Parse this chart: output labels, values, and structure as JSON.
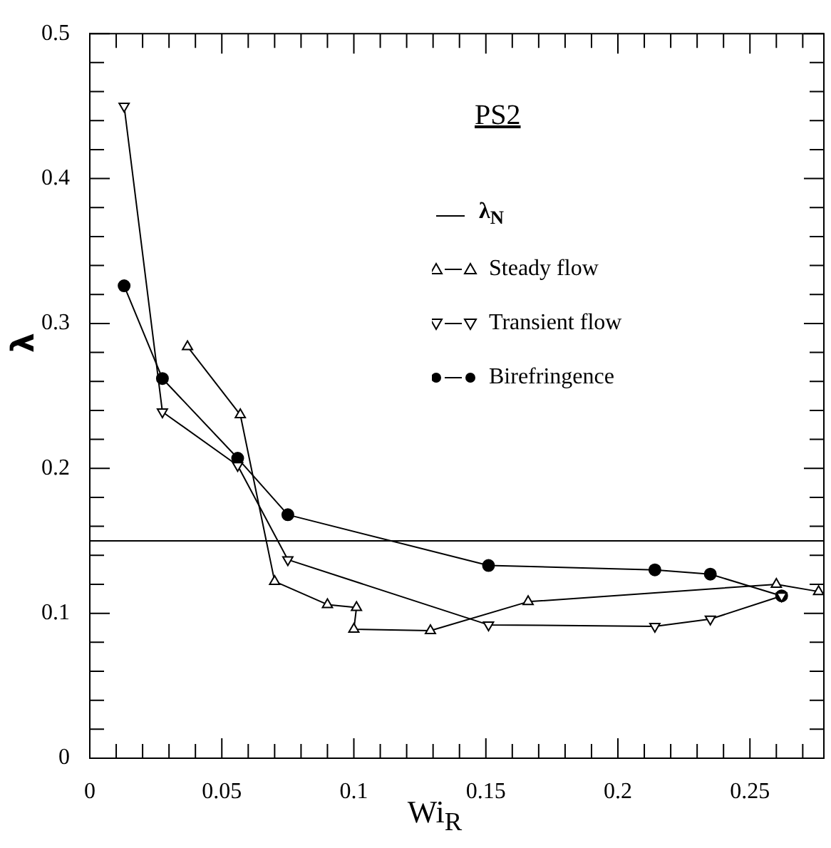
{
  "chart_data": {
    "type": "line",
    "title": "PS2",
    "xlabel": "Wi$_{R}$",
    "ylabel": "λ",
    "xlim": [
      0,
      0.278
    ],
    "ylim": [
      0,
      0.5
    ],
    "xticks": [
      0,
      {
        "value": 0.01,
        "label": null
      },
      {
        "value": 0.02,
        "label": null
      },
      {
        "value": 0.03,
        "label": null
      },
      {
        "value": 0.04,
        "label": null
      },
      0.05,
      {
        "value": 0.06,
        "label": null
      },
      {
        "value": 0.07,
        "label": null
      },
      {
        "value": 0.08,
        "label": null
      },
      {
        "value": 0.09,
        "label": null
      },
      0.1,
      {
        "value": 0.11,
        "label": null
      },
      {
        "value": 0.12,
        "label": null
      },
      {
        "value": 0.13,
        "label": null
      },
      {
        "value": 0.14,
        "label": null
      },
      0.15,
      {
        "value": 0.16,
        "label": null
      },
      {
        "value": 0.17,
        "label": null
      },
      {
        "value": 0.18,
        "label": null
      },
      {
        "value": 0.19,
        "label": null
      },
      0.2,
      {
        "value": 0.21,
        "label": null
      },
      {
        "value": 0.22,
        "label": null
      },
      {
        "value": 0.23,
        "label": null
      },
      {
        "value": 0.24,
        "label": null
      },
      0.25,
      {
        "value": 0.26,
        "label": null
      },
      {
        "value": 0.27,
        "label": null
      }
    ],
    "yticks": [
      0,
      {
        "value": 0.02,
        "label": null
      },
      {
        "value": 0.04,
        "label": null
      },
      {
        "value": 0.06,
        "label": null
      },
      {
        "value": 0.08,
        "label": null
      },
      0.1,
      {
        "value": 0.12,
        "label": null
      },
      {
        "value": 0.14,
        "label": null
      },
      {
        "value": 0.16,
        "label": null
      },
      {
        "value": 0.18,
        "label": null
      },
      0.2,
      {
        "value": 0.22,
        "label": null
      },
      {
        "value": 0.24,
        "label": null
      },
      {
        "value": 0.26,
        "label": null
      },
      {
        "value": 0.28,
        "label": null
      },
      0.3,
      {
        "value": 0.32,
        "label": null
      },
      {
        "value": 0.34,
        "label": null
      },
      {
        "value": 0.36,
        "label": null
      },
      {
        "value": 0.38,
        "label": null
      },
      0.4,
      {
        "value": 0.42,
        "label": null
      },
      {
        "value": 0.44,
        "label": null
      },
      {
        "value": 0.46,
        "label": null
      },
      {
        "value": 0.48,
        "label": null
      },
      0.5
    ],
    "grid": false,
    "legend": "top right",
    "line_style": "solid",
    "ref_lines": [
      {
        "axis": "y",
        "value": 0.15,
        "label": "λ$_{N}$",
        "color": "#000000"
      }
    ],
    "series": [
      {
        "name": "Steady flow",
        "color": "#000000",
        "marker": "triangle",
        "x": [
          0.037,
          0.057,
          0.07,
          0.09,
          0.101,
          0.1,
          0.129,
          0.166,
          0.26,
          0.276
        ],
        "values": [
          0.284,
          0.237,
          0.122,
          0.106,
          0.104,
          0.089,
          0.088,
          0.108,
          0.12,
          0.115
        ]
      },
      {
        "name": "Transient flow",
        "color": "#000000",
        "marker": "triangle-down",
        "x": [
          0.013,
          0.0275,
          0.056,
          0.075,
          0.151,
          0.214,
          0.235,
          0.262
        ],
        "values": [
          0.45,
          0.239,
          0.202,
          0.137,
          0.092,
          0.091,
          0.096,
          0.112
        ]
      },
      {
        "name": "Birefringence",
        "color": "#000000",
        "marker": "circle",
        "x": [
          0.013,
          0.0275,
          0.056,
          0.075,
          0.151,
          0.214,
          0.235,
          0.262
        ],
        "values": [
          0.326,
          0.262,
          0.207,
          0.168,
          0.133,
          0.13,
          0.127,
          0.112
        ]
      }
    ]
  }
}
